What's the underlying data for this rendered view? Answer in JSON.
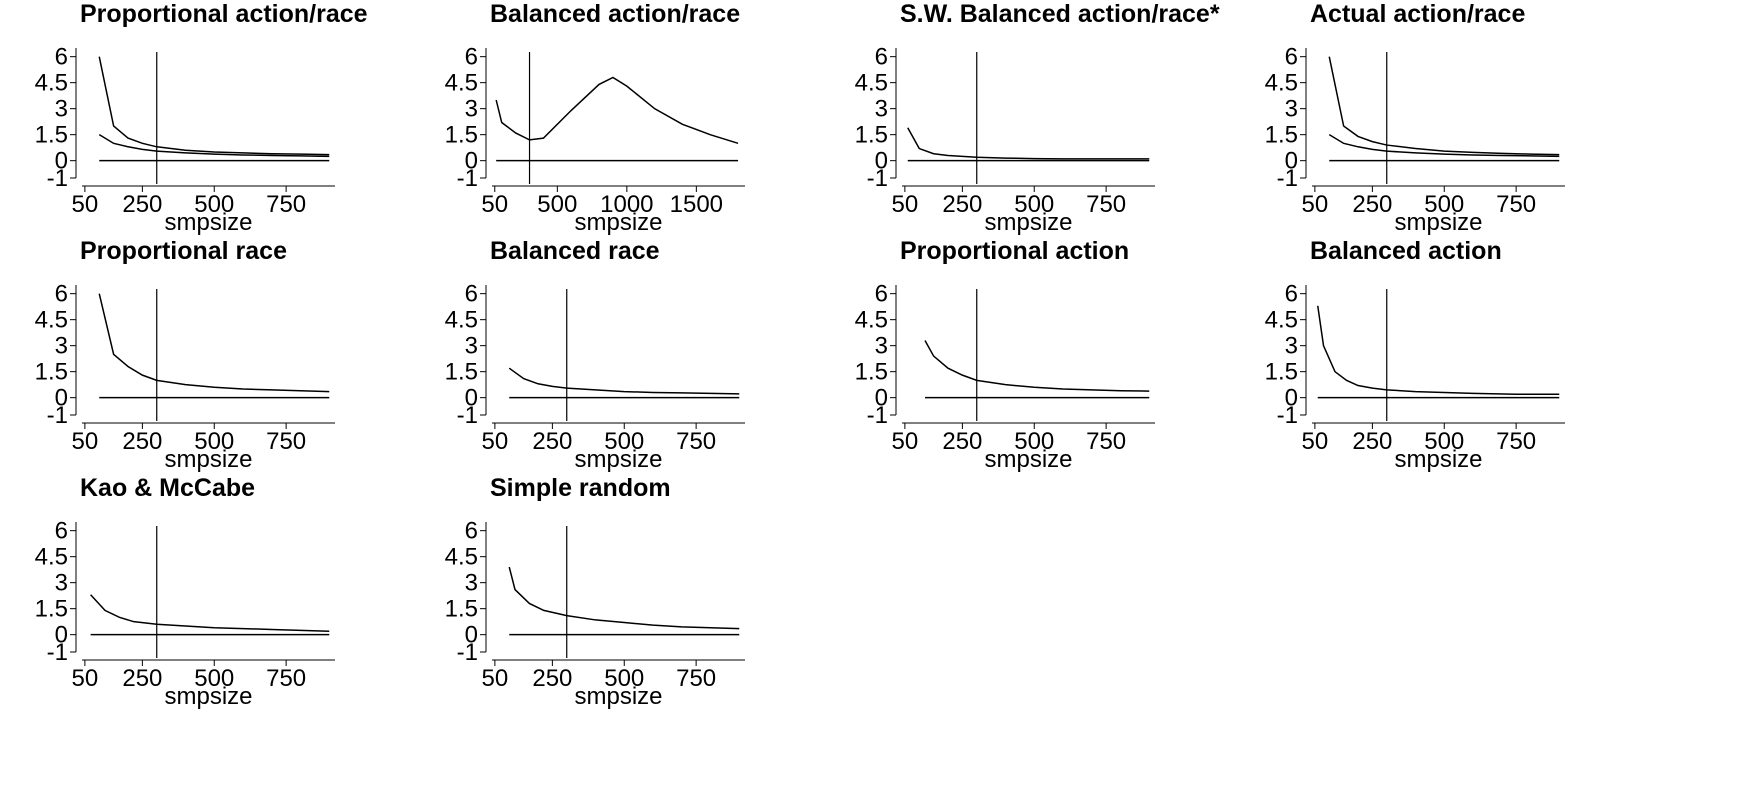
{
  "chart_data": [
    {
      "type": "line",
      "title": "Proportional action/race",
      "x_label": "smpsize",
      "xlim": [
        40,
        920
      ],
      "xticks": [
        50,
        250,
        500,
        750
      ],
      "ylim": [
        -1,
        6.5
      ],
      "yticks": [
        -1,
        0,
        1.5,
        3,
        4.5,
        6
      ],
      "vline": 300,
      "color": "#000000",
      "x": [
        100,
        150,
        200,
        250,
        300,
        400,
        500,
        600,
        700,
        800,
        900
      ],
      "series": [
        {
          "values": [
            6,
            2,
            1.3,
            1,
            0.8,
            0.6,
            0.5,
            0.45,
            0.4,
            0.38,
            0.35
          ]
        },
        {
          "values": [
            1.5,
            1,
            0.8,
            0.65,
            0.55,
            0.45,
            0.38,
            0.33,
            0.3,
            0.28,
            0.25
          ]
        },
        {
          "values": [
            0,
            0,
            0,
            0,
            0,
            0,
            0,
            0,
            0,
            0,
            0
          ]
        }
      ]
    },
    {
      "type": "line",
      "title": "Balanced action/race",
      "x_label": "smpsize",
      "xlim": [
        30,
        1850
      ],
      "xticks": [
        50,
        500,
        1000,
        1500
      ],
      "ylim": [
        -1,
        6.5
      ],
      "yticks": [
        -1,
        0,
        1.5,
        3,
        4.5,
        6
      ],
      "vline": 300,
      "color": "#000000",
      "x": [
        60,
        100,
        200,
        300,
        400,
        600,
        800,
        900,
        1000,
        1200,
        1400,
        1600,
        1800
      ],
      "series": [
        {
          "values": [
            3.5,
            2.2,
            1.6,
            1.2,
            1.3,
            2.9,
            4.4,
            4.8,
            4.3,
            3,
            2.1,
            1.5,
            1
          ]
        },
        {
          "values": [
            0,
            0,
            0,
            0,
            0,
            0,
            0,
            0,
            0,
            0,
            0,
            0,
            0
          ]
        }
      ]
    },
    {
      "type": "line",
      "title": "S.W. Balanced action/race*",
      "x_label": "smpsize",
      "xlim": [
        40,
        920
      ],
      "xticks": [
        50,
        250,
        500,
        750
      ],
      "ylim": [
        -1,
        6.5
      ],
      "yticks": [
        -1,
        0,
        1.5,
        3,
        4.5,
        6
      ],
      "vline": 300,
      "color": "#000000",
      "x": [
        60,
        100,
        150,
        200,
        250,
        300,
        400,
        500,
        600,
        700,
        900
      ],
      "series": [
        {
          "values": [
            1.9,
            0.7,
            0.4,
            0.3,
            0.25,
            0.2,
            0.15,
            0.12,
            0.1,
            0.1,
            0.1
          ]
        },
        {
          "values": [
            0,
            0,
            0,
            0,
            0,
            0,
            0,
            0,
            0,
            0,
            0
          ]
        }
      ]
    },
    {
      "type": "line",
      "title": "Actual action/race",
      "x_label": "smpsize",
      "xlim": [
        40,
        920
      ],
      "xticks": [
        50,
        250,
        500,
        750
      ],
      "ylim": [
        -1,
        6.5
      ],
      "yticks": [
        -1,
        0,
        1.5,
        3,
        4.5,
        6
      ],
      "vline": 300,
      "color": "#000000",
      "x": [
        100,
        150,
        200,
        250,
        300,
        400,
        500,
        600,
        700,
        800,
        900
      ],
      "series": [
        {
          "values": [
            6,
            2,
            1.4,
            1.1,
            0.9,
            0.7,
            0.55,
            0.48,
            0.42,
            0.38,
            0.35
          ]
        },
        {
          "values": [
            1.5,
            1,
            0.8,
            0.65,
            0.55,
            0.45,
            0.38,
            0.33,
            0.3,
            0.28,
            0.25
          ]
        },
        {
          "values": [
            0,
            0,
            0,
            0,
            0,
            0,
            0,
            0,
            0,
            0,
            0
          ]
        }
      ]
    },
    {
      "type": "line",
      "title": "Proportional race",
      "x_label": "smpsize",
      "xlim": [
        40,
        920
      ],
      "xticks": [
        50,
        250,
        500,
        750
      ],
      "ylim": [
        -1,
        6.5
      ],
      "yticks": [
        -1,
        0,
        1.5,
        3,
        4.5,
        6
      ],
      "vline": 300,
      "color": "#000000",
      "x": [
        100,
        150,
        200,
        250,
        300,
        400,
        500,
        600,
        700,
        800,
        900
      ],
      "series": [
        {
          "values": [
            6,
            2.5,
            1.8,
            1.3,
            1,
            0.75,
            0.6,
            0.5,
            0.45,
            0.4,
            0.35
          ]
        },
        {
          "values": [
            0,
            0,
            0,
            0,
            0,
            0,
            0,
            0,
            0,
            0,
            0
          ]
        }
      ]
    },
    {
      "type": "line",
      "title": "Balanced race",
      "x_label": "smpsize",
      "xlim": [
        40,
        920
      ],
      "xticks": [
        50,
        250,
        500,
        750
      ],
      "ylim": [
        -1,
        6.5
      ],
      "yticks": [
        -1,
        0,
        1.5,
        3,
        4.5,
        6
      ],
      "vline": 300,
      "color": "#000000",
      "x": [
        100,
        150,
        200,
        250,
        300,
        400,
        500,
        600,
        700,
        800,
        900
      ],
      "series": [
        {
          "values": [
            1.7,
            1.1,
            0.8,
            0.65,
            0.55,
            0.45,
            0.35,
            0.3,
            0.28,
            0.25,
            0.22
          ]
        },
        {
          "values": [
            0,
            0,
            0,
            0,
            0,
            0,
            0,
            0,
            0,
            0,
            0
          ]
        }
      ]
    },
    {
      "type": "line",
      "title": "Proportional action",
      "x_label": "smpsize",
      "xlim": [
        40,
        920
      ],
      "xticks": [
        50,
        250,
        500,
        750
      ],
      "ylim": [
        -1,
        6.5
      ],
      "yticks": [
        -1,
        0,
        1.5,
        3,
        4.5,
        6
      ],
      "vline": 300,
      "color": "#000000",
      "x": [
        120,
        150,
        200,
        250,
        300,
        400,
        500,
        600,
        700,
        800,
        900
      ],
      "series": [
        {
          "values": [
            3.3,
            2.4,
            1.7,
            1.3,
            1,
            0.75,
            0.6,
            0.5,
            0.45,
            0.4,
            0.38
          ]
        },
        {
          "values": [
            0,
            0,
            0,
            0,
            0,
            0,
            0,
            0,
            0,
            0,
            0
          ]
        }
      ]
    },
    {
      "type": "line",
      "title": "Balanced action",
      "x_label": "smpsize",
      "xlim": [
        40,
        920
      ],
      "xticks": [
        50,
        250,
        500,
        750
      ],
      "ylim": [
        -1,
        6.5
      ],
      "yticks": [
        -1,
        0,
        1.5,
        3,
        4.5,
        6
      ],
      "vline": 300,
      "color": "#000000",
      "x": [
        60,
        80,
        120,
        160,
        200,
        250,
        300,
        400,
        500,
        600,
        750,
        900
      ],
      "series": [
        {
          "values": [
            5.3,
            3,
            1.5,
            1,
            0.7,
            0.55,
            0.45,
            0.35,
            0.3,
            0.25,
            0.2,
            0.2
          ]
        },
        {
          "values": [
            0,
            0,
            0,
            0,
            0,
            0,
            0,
            0,
            0,
            0,
            0,
            0
          ]
        }
      ]
    },
    {
      "type": "line",
      "title": "Kao & McCabe",
      "x_label": "smpsize",
      "xlim": [
        40,
        920
      ],
      "xticks": [
        50,
        250,
        500,
        750
      ],
      "ylim": [
        -1,
        6.5
      ],
      "yticks": [
        -1,
        0,
        1.5,
        3,
        4.5,
        6
      ],
      "vline": 300,
      "color": "#000000",
      "x": [
        70,
        120,
        170,
        220,
        300,
        400,
        500,
        600,
        700,
        800,
        900
      ],
      "series": [
        {
          "values": [
            2.3,
            1.4,
            1,
            0.75,
            0.6,
            0.5,
            0.4,
            0.35,
            0.3,
            0.25,
            0.2
          ]
        },
        {
          "values": [
            0,
            0,
            0,
            0,
            0,
            0,
            0,
            0,
            0,
            0,
            0
          ]
        }
      ]
    },
    {
      "type": "line",
      "title": "Simple random",
      "x_label": "smpsize",
      "xlim": [
        40,
        920
      ],
      "xticks": [
        50,
        250,
        500,
        750
      ],
      "ylim": [
        -1,
        6.5
      ],
      "yticks": [
        -1,
        0,
        1.5,
        3,
        4.5,
        6
      ],
      "vline": 300,
      "color": "#000000",
      "x": [
        100,
        120,
        170,
        220,
        300,
        400,
        500,
        600,
        700,
        800,
        900
      ],
      "series": [
        {
          "values": [
            3.9,
            2.6,
            1.8,
            1.4,
            1.1,
            0.85,
            0.7,
            0.55,
            0.45,
            0.4,
            0.35
          ]
        },
        {
          "values": [
            0,
            0,
            0,
            0,
            0,
            0,
            0,
            0,
            0,
            0,
            0
          ]
        }
      ]
    }
  ]
}
